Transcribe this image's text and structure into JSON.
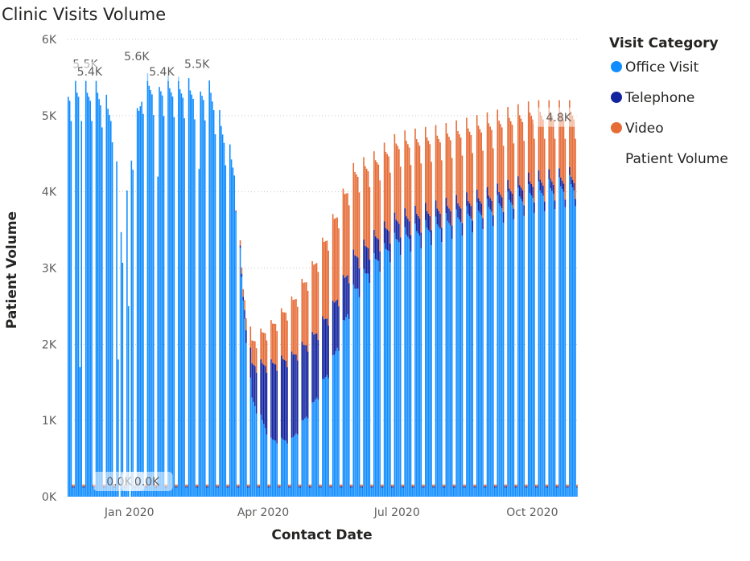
{
  "chart_data": {
    "type": "bar",
    "stacked": true,
    "title": "Clinic Visits Volume",
    "xlabel": "Contact Date",
    "ylabel": "Patient Volume",
    "ylim": [
      0,
      6000
    ],
    "y_ticks": [
      0,
      1000,
      2000,
      3000,
      4000,
      5000,
      6000
    ],
    "y_tick_labels": [
      "0K",
      "1K",
      "2K",
      "3K",
      "4K",
      "5K",
      "6K"
    ],
    "x_range": [
      "2019-11-20",
      "2020-11-01"
    ],
    "x_ticks": [
      {
        "date": "2020-01-01",
        "label": "Jan 2020"
      },
      {
        "date": "2020-04-01",
        "label": "Apr 2020"
      },
      {
        "date": "2020-07-01",
        "label": "Jul 2020"
      },
      {
        "date": "2020-10-01",
        "label": "Oct 2020"
      }
    ],
    "gridlines": true,
    "legend": {
      "position": "right",
      "title": "Visit Category",
      "items": [
        "Office Visit",
        "Telephone",
        "Video"
      ],
      "extra_text": "Patient Volume"
    },
    "series": [
      {
        "name": "Office Visit",
        "color": "#118DFF"
      },
      {
        "name": "Telephone",
        "color": "#12239E"
      },
      {
        "name": "Video",
        "color": "#E66C37"
      }
    ],
    "weekday_anchors": [
      {
        "date": "2019-11-20",
        "office": 5300,
        "telephone": 0,
        "video": 0
      },
      {
        "date": "2019-12-10",
        "office": 5300,
        "telephone": 0,
        "video": 0
      },
      {
        "date": "2019-12-20",
        "office": 5000,
        "telephone": 0,
        "video": 0
      },
      {
        "date": "2019-12-27",
        "office": 3300,
        "telephone": 0,
        "video": 0
      },
      {
        "date": "2020-01-02",
        "office": 4500,
        "telephone": 0,
        "video": 0
      },
      {
        "date": "2020-01-10",
        "office": 5400,
        "telephone": 0,
        "video": 0
      },
      {
        "date": "2020-02-25",
        "office": 5300,
        "telephone": 0,
        "video": 0
      },
      {
        "date": "2020-03-12",
        "office": 4300,
        "telephone": 0,
        "video": 0
      },
      {
        "date": "2020-03-18",
        "office": 2600,
        "telephone": 50,
        "video": 100
      },
      {
        "date": "2020-03-24",
        "office": 1300,
        "telephone": 450,
        "video": 300
      },
      {
        "date": "2020-04-06",
        "office": 750,
        "telephone": 1000,
        "video": 500
      },
      {
        "date": "2020-04-20",
        "office": 750,
        "telephone": 1100,
        "video": 700
      },
      {
        "date": "2020-05-04",
        "office": 1200,
        "telephone": 900,
        "video": 900
      },
      {
        "date": "2020-05-18",
        "office": 1800,
        "telephone": 700,
        "video": 1100
      },
      {
        "date": "2020-06-01",
        "office": 2700,
        "telephone": 450,
        "video": 1100
      },
      {
        "date": "2020-06-15",
        "office": 3100,
        "telephone": 300,
        "video": 1000
      },
      {
        "date": "2020-07-01",
        "office": 3400,
        "telephone": 250,
        "video": 1000
      },
      {
        "date": "2020-08-01",
        "office": 3600,
        "telephone": 200,
        "video": 950
      },
      {
        "date": "2020-09-01",
        "office": 3800,
        "telephone": 150,
        "video": 950
      },
      {
        "date": "2020-10-01",
        "office": 4000,
        "telephone": 150,
        "video": 900
      },
      {
        "date": "2020-10-27",
        "office": 4100,
        "telephone": 100,
        "video": 850
      }
    ],
    "holiday_values": [
      {
        "date": "2019-11-28",
        "office": 1700
      },
      {
        "date": "2019-12-24",
        "office": 1800
      },
      {
        "date": "2019-12-25",
        "office": 0
      },
      {
        "date": "2019-12-31",
        "office": 2500
      },
      {
        "date": "2020-01-01",
        "office": 0
      },
      {
        "date": "2020-01-20",
        "office": 4200
      },
      {
        "date": "2020-02-17",
        "office": 4300
      }
    ],
    "weekend_values": {
      "office": 120,
      "telephone": 15,
      "video": 25
    },
    "data_labels": [
      {
        "date": "2019-12-02",
        "value": 5500,
        "text": "5.5K",
        "boxed": false
      },
      {
        "date": "2019-12-05",
        "value": 5400,
        "text": "5.4K",
        "boxed": true
      },
      {
        "date": "2020-01-06",
        "value": 5600,
        "text": "5.6K",
        "boxed": false
      },
      {
        "date": "2020-01-23",
        "value": 5400,
        "text": "5.4K",
        "boxed": true
      },
      {
        "date": "2020-02-16",
        "value": 5500,
        "text": "5.5K",
        "boxed": false
      },
      {
        "date": "2019-12-25",
        "value": 0,
        "text": "0.0K",
        "boxed": true
      },
      {
        "date": "2020-01-13",
        "value": 0,
        "text": "0.0K",
        "boxed": true
      },
      {
        "date": "2020-10-19",
        "value": 4800,
        "text": "4.8K",
        "boxed": true
      }
    ]
  }
}
